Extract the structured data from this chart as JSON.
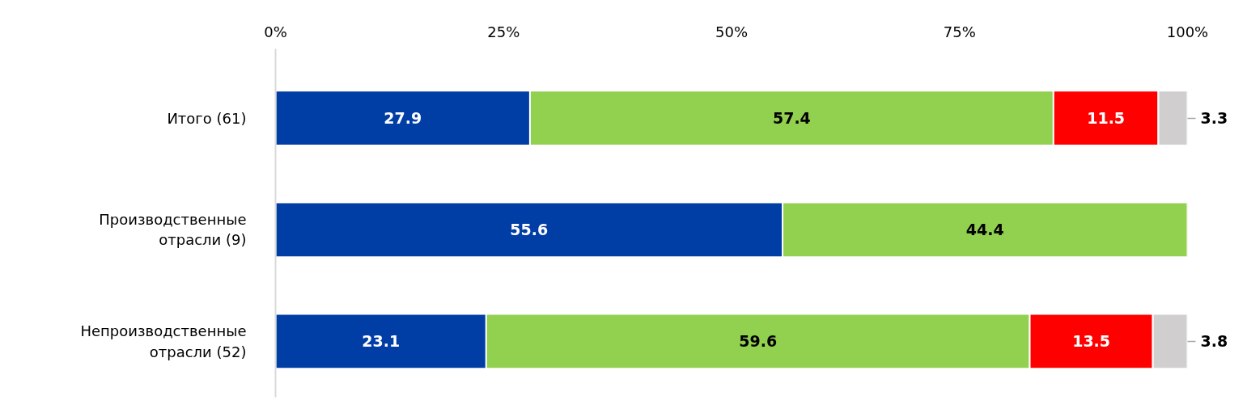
{
  "chart_data": {
    "type": "bar",
    "orientation": "horizontal",
    "stacked": true,
    "data_labels": true,
    "grid": false,
    "categories": [
      "Итого (61)",
      "Производственные отрасли (9)",
      "Непроизводственные отрасли (52)"
    ],
    "series": [
      {
        "color": "#003da5",
        "values": [
          27.9,
          55.6,
          23.1
        ]
      },
      {
        "color": "#92d050",
        "values": [
          57.4,
          44.4,
          59.6
        ]
      },
      {
        "color": "#ff0000",
        "values": [
          11.5,
          null,
          13.5
        ]
      },
      {
        "color": "#d0cece",
        "values": [
          3.3,
          null,
          3.8
        ]
      }
    ],
    "xlim": [
      0,
      100
    ],
    "xticks": [
      {
        "value": 0,
        "label": "0%"
      },
      {
        "value": 25,
        "label": "25%"
      },
      {
        "value": 50,
        "label": "50%"
      },
      {
        "value": 75,
        "label": "75%"
      },
      {
        "value": 100,
        "label": "100%"
      }
    ]
  }
}
